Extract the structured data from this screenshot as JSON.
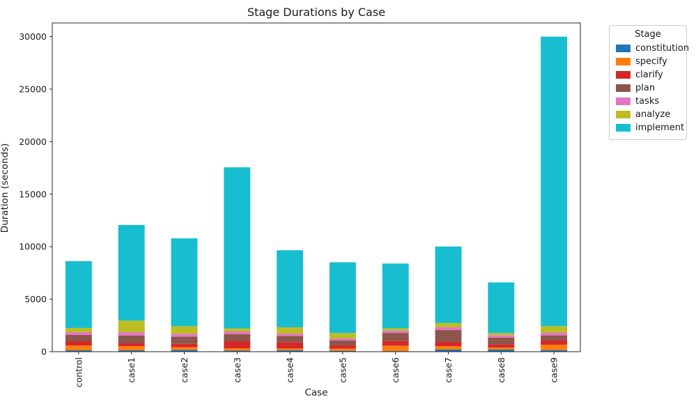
{
  "chart_data": {
    "type": "bar",
    "stacked": true,
    "title": "Stage Durations by Case",
    "xlabel": "Case",
    "ylabel": "Duration (seconds)",
    "legend_title": "Stage",
    "legend_position": "outside upper right",
    "grid": false,
    "ylim": [
      0,
      31300
    ],
    "y_ticks": [
      0,
      5000,
      10000,
      15000,
      20000,
      25000,
      30000
    ],
    "categories": [
      "control",
      "case1",
      "case2",
      "case3",
      "case4",
      "case5",
      "case6",
      "case7",
      "case8",
      "case9"
    ],
    "series": [
      {
        "name": "constitution",
        "color": "#1f77b4",
        "values": [
          130,
          130,
          175,
          110,
          130,
          90,
          60,
          200,
          200,
          155
        ]
      },
      {
        "name": "specify",
        "color": "#ff7f0e",
        "values": [
          465,
          400,
          245,
          220,
          175,
          200,
          510,
          330,
          200,
          510
        ]
      },
      {
        "name": "clarify",
        "color": "#d62728",
        "values": [
          400,
          265,
          330,
          665,
          575,
          310,
          440,
          400,
          310,
          400
        ]
      },
      {
        "name": "plan",
        "color": "#8c564b",
        "values": [
          600,
          730,
          685,
          665,
          620,
          465,
          775,
          1130,
          620,
          485
        ]
      },
      {
        "name": "tasks",
        "color": "#e377c2",
        "values": [
          265,
          330,
          265,
          265,
          220,
          200,
          220,
          265,
          245,
          265
        ]
      },
      {
        "name": "analyze",
        "color": "#bcbd22",
        "values": [
          400,
          1105,
          730,
          290,
          600,
          510,
          220,
          400,
          200,
          620
        ]
      },
      {
        "name": "implement",
        "color": "#17becf",
        "values": [
          6360,
          9105,
          8360,
          15340,
          7340,
          6740,
          6170,
          7290,
          4820,
          27565
        ]
      }
    ],
    "totals": [
      8620,
      12065,
      10790,
      17555,
      9660,
      8515,
      8395,
      10015,
      6595,
      30000
    ],
    "axis_color": "#262626",
    "text_color": "#1a1a1a"
  }
}
